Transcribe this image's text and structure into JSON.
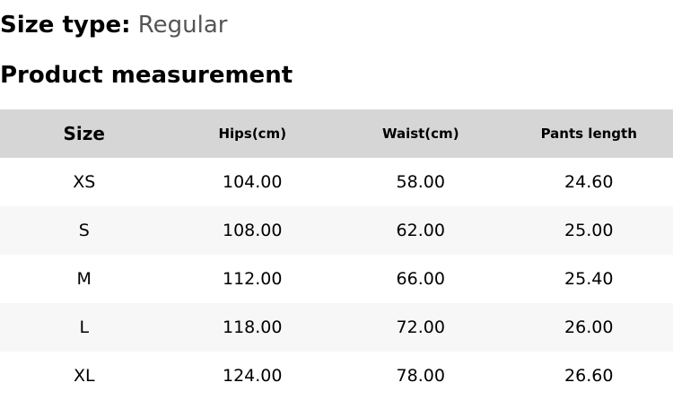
{
  "size_type": {
    "label": "Size type:",
    "value": "Regular"
  },
  "title": "Product measurement",
  "headers": [
    "Size",
    "Hips(cm)",
    "Waist(cm)",
    "Pants length"
  ],
  "rows": [
    [
      "XS",
      "104.00",
      "58.00",
      "24.60"
    ],
    [
      "S",
      "108.00",
      "62.00",
      "25.00"
    ],
    [
      "M",
      "112.00",
      "66.00",
      "25.40"
    ],
    [
      "L",
      "118.00",
      "72.00",
      "26.00"
    ],
    [
      "XL",
      "124.00",
      "78.00",
      "26.60"
    ]
  ]
}
